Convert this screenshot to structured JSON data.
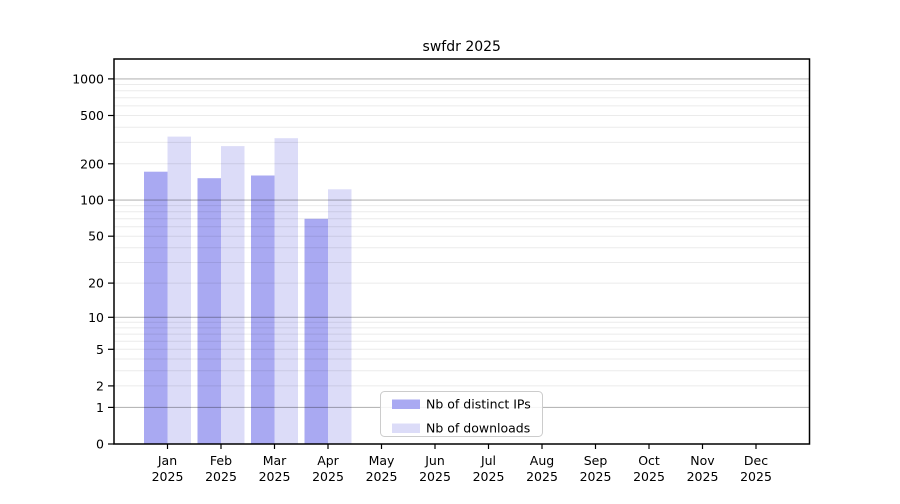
{
  "title": "swfdr 2025",
  "chart_data": {
    "type": "bar",
    "title": "swfdr 2025",
    "categories": [
      "Jan",
      "Feb",
      "Mar",
      "Apr",
      "May",
      "Jun",
      "Jul",
      "Aug",
      "Sep",
      "Oct",
      "Nov",
      "Dec"
    ],
    "category_year": "2025",
    "series": [
      {
        "name": "Nb of distinct IPs",
        "color": "#a9a9f2",
        "values": [
          172,
          152,
          160,
          70,
          null,
          null,
          null,
          null,
          null,
          null,
          null,
          null
        ]
      },
      {
        "name": "Nb of downloads",
        "color": "#dcdcf8",
        "values": [
          335,
          280,
          325,
          123,
          null,
          null,
          null,
          null,
          null,
          null,
          null,
          null
        ]
      }
    ],
    "yscale": "log1p",
    "ylim": [
      0,
      1459
    ],
    "yticks": [
      0,
      1,
      2,
      5,
      10,
      20,
      50,
      100,
      200,
      500,
      1000
    ],
    "grid": "both",
    "legend": {
      "entries": [
        "Nb of distinct IPs",
        "Nb of downloads"
      ],
      "position": "lower-center"
    }
  },
  "colors": {
    "bar_distinct_ips": "#a9a9f2",
    "bar_downloads": "#dcdcf8",
    "grid_major": "rgba(0,0,0,0.28)",
    "grid_minor": "rgba(0,0,0,0.08)",
    "axis": "#000000",
    "legend_border": "#cccccc",
    "legend_bg": "rgba(255,255,255,0.85)",
    "background": "#ffffff"
  }
}
